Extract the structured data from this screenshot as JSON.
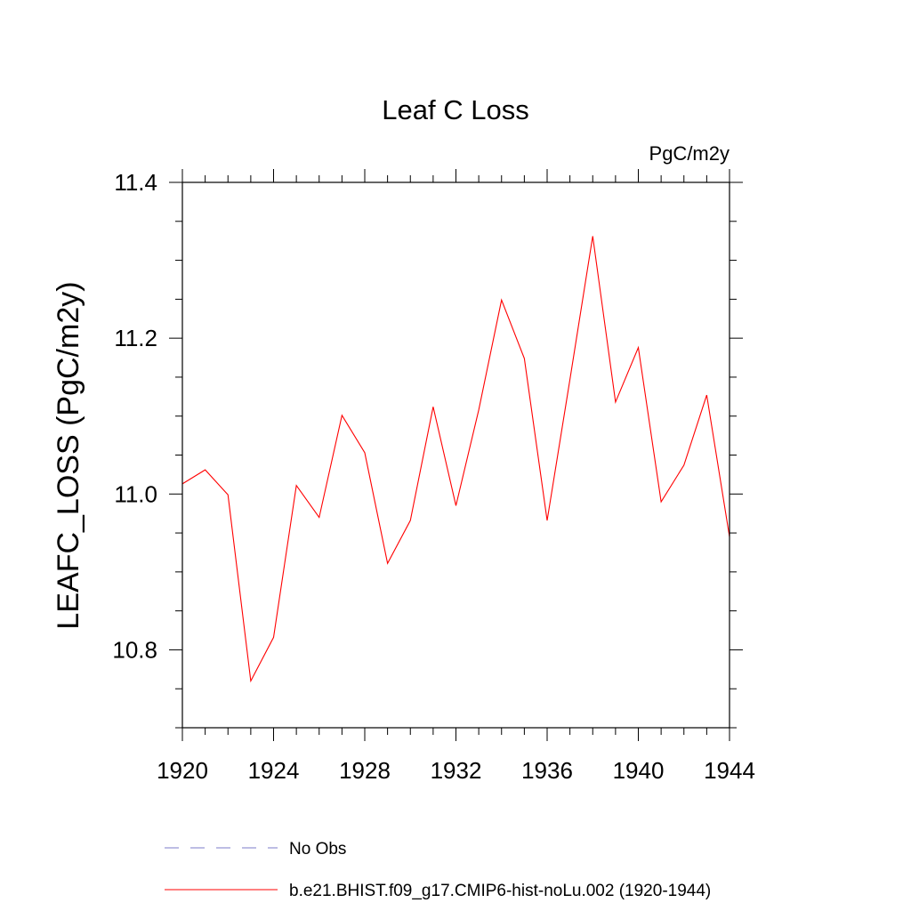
{
  "chart_data": {
    "type": "line",
    "title": "Leaf C Loss",
    "units_label": "PgC/m2y",
    "ylabel": "LEAFC_LOSS  (PgC/m2y)",
    "xlabel": "",
    "xlim": [
      1920,
      1944
    ],
    "ylim": [
      10.7,
      11.4
    ],
    "x_ticks": [
      1920,
      1924,
      1928,
      1932,
      1936,
      1940,
      1944
    ],
    "x_tick_labels": [
      "1920",
      "1924",
      "1928",
      "1932",
      "1936",
      "1940",
      "1944"
    ],
    "x_minor_step": 1,
    "y_ticks": [
      10.8,
      11.0,
      11.2,
      11.4
    ],
    "y_tick_labels": [
      "10.8",
      "11.0",
      "11.2",
      "11.4"
    ],
    "y_minor_step": 0.05,
    "grid": false,
    "legend_position": "bottom",
    "series": [
      {
        "name": "b.e21.BHIST.f09_g17.CMIP6-hist-noLu.002 (1920-1944)",
        "color": "#ff0000",
        "style": "solid",
        "x": [
          1920,
          1921,
          1922,
          1923,
          1924,
          1925,
          1926,
          1927,
          1928,
          1929,
          1930,
          1931,
          1932,
          1933,
          1934,
          1935,
          1936,
          1937,
          1938,
          1939,
          1940,
          1941,
          1942,
          1943,
          1944
        ],
        "values": [
          11.013,
          11.031,
          10.999,
          10.76,
          10.816,
          11.011,
          10.97,
          11.101,
          11.053,
          10.911,
          10.966,
          11.112,
          10.985,
          11.108,
          11.249,
          11.174,
          10.966,
          11.147,
          11.331,
          11.118,
          11.188,
          10.99,
          11.037,
          11.127,
          10.945
        ]
      }
    ],
    "legend": [
      {
        "label": "No Obs",
        "color": "#7b7bc9",
        "style": "dashed"
      },
      {
        "label": "b.e21.BHIST.f09_g17.CMIP6-hist-noLu.002 (1920-1944)",
        "color": "#ff0000",
        "style": "solid"
      }
    ]
  }
}
